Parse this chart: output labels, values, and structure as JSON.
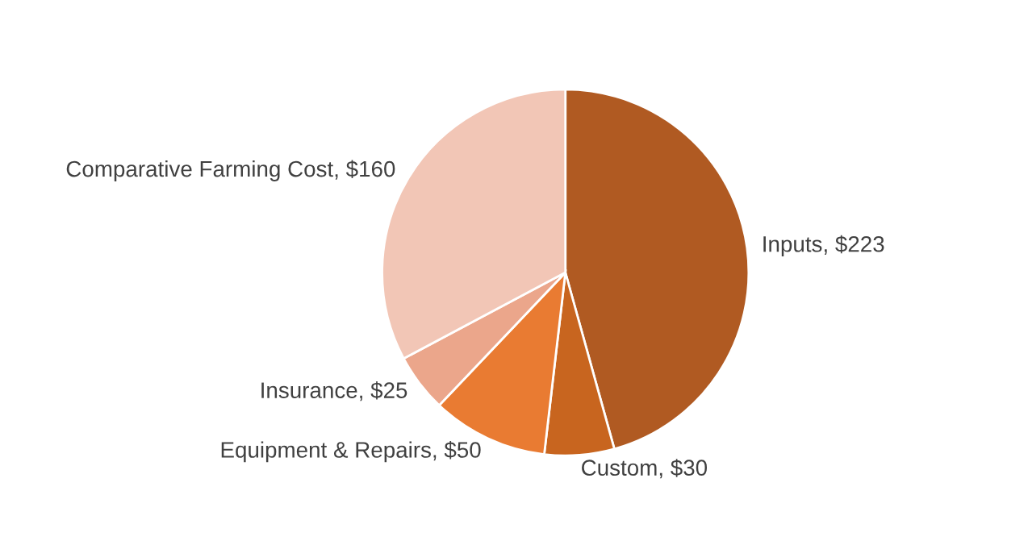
{
  "chart_data": {
    "type": "pie",
    "categories": [
      "Inputs",
      "Custom",
      "Equipment & Repairs",
      "Insurance",
      "Comparative Farming Cost"
    ],
    "values": [
      223,
      30,
      50,
      25,
      160
    ],
    "value_labels": [
      "$223",
      "$30",
      "$50",
      "$25",
      "$160"
    ],
    "colors": [
      "#b05a22",
      "#c8651f",
      "#e97b32",
      "#eba68b",
      "#f2c6b6"
    ]
  }
}
